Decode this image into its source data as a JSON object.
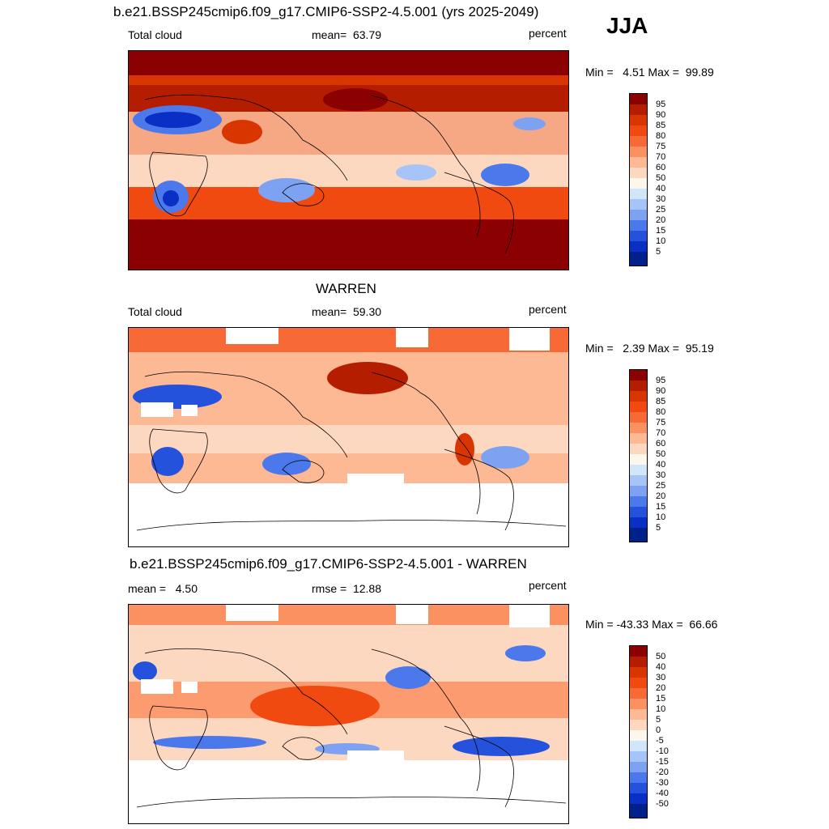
{
  "season": "JJA",
  "panels": [
    {
      "title": "b.e21.BSSP245cmip6.f09_g17.CMIP6-SSP2-4.5.001 (yrs 2025-2049)",
      "left_label": "Total cloud",
      "center_label": "mean=  63.79",
      "units": "percent",
      "minmax": "Min =   4.51 Max =  99.89",
      "levels": [
        "95",
        "90",
        "85",
        "80",
        "75",
        "70",
        "60",
        "50",
        "40",
        "30",
        "25",
        "20",
        "15",
        "10",
        "5"
      ]
    },
    {
      "title": "WARREN",
      "left_label": "Total cloud",
      "center_label": "mean=  59.30",
      "units": "percent",
      "minmax": "Min =   2.39 Max =  95.19",
      "levels": [
        "95",
        "90",
        "85",
        "80",
        "75",
        "70",
        "60",
        "50",
        "40",
        "30",
        "25",
        "20",
        "15",
        "10",
        "5"
      ]
    },
    {
      "title": "b.e21.BSSP245cmip6.f09_g17.CMIP6-SSP2-4.5.001 - WARREN",
      "left_label": "mean =   4.50",
      "center_label": "rmse =  12.88",
      "units": "percent",
      "minmax": "Min = -43.33 Max =  66.66",
      "levels": [
        "50",
        "40",
        "30",
        "20",
        "15",
        "10",
        "5",
        "0",
        "-5",
        "-10",
        "-15",
        "-20",
        "-30",
        "-40",
        "-50"
      ]
    }
  ],
  "colors": {
    "colorbar": [
      "#8b0000",
      "#b51d00",
      "#d93500",
      "#f04a10",
      "#f86a35",
      "#fb9060",
      "#fdb894",
      "#fdd8c0",
      "#fdf6ec",
      "#d2e6fb",
      "#a7c4f8",
      "#7ea2f2",
      "#4b78ea",
      "#2552dc",
      "#0a2fc4",
      "#00208a"
    ],
    "land_outline": "#000000"
  }
}
